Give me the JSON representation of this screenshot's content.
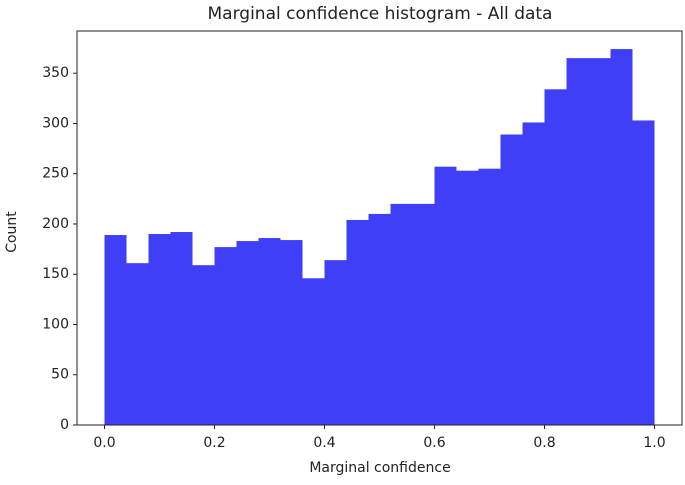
{
  "chart_data": {
    "type": "histogram",
    "title": "Marginal confidence histogram - All data",
    "xlabel": "Marginal confidence",
    "ylabel": "Count",
    "bins": [
      0,
      0.04,
      0.08,
      0.12,
      0.16,
      0.2,
      0.24,
      0.28,
      0.32,
      0.36,
      0.4,
      0.44,
      0.48,
      0.52,
      0.56,
      0.6,
      0.64,
      0.68,
      0.72,
      0.76,
      0.8,
      0.84,
      0.88,
      0.92,
      0.96,
      1
    ],
    "values": [
      189,
      161,
      190,
      192,
      159,
      177,
      183,
      186,
      184,
      146,
      164,
      204,
      210,
      220,
      220,
      257,
      253,
      255,
      289,
      301,
      334,
      365,
      365,
      374,
      303
    ],
    "color": "#3f3ff8",
    "xlim": [
      -0.05,
      1.05
    ],
    "ylim": [
      0,
      392
    ],
    "xticks": [
      {
        "value": 0,
        "label": "0.0"
      },
      {
        "value": 0.2,
        "label": "0.2"
      },
      {
        "value": 0.4,
        "label": "0.4"
      },
      {
        "value": 0.6,
        "label": "0.6"
      },
      {
        "value": 0.8,
        "label": "0.8"
      },
      {
        "value": 1,
        "label": "1.0"
      }
    ],
    "yticks": [
      0,
      50,
      100,
      150,
      200,
      250,
      300,
      350
    ]
  }
}
